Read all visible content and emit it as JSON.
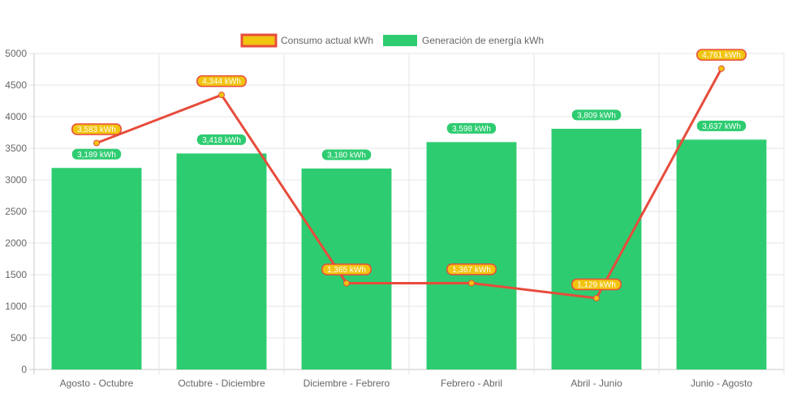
{
  "chart_data": {
    "type": "bar",
    "categories": [
      "Agosto - Octubre",
      "Octubre - Diciembre",
      "Diciembre - Febrero",
      "Febrero - Abril",
      "Abril - Junio",
      "Junio - Agosto"
    ],
    "series": [
      {
        "name": "Consumo actual kWh",
        "type": "line",
        "values": [
          3583,
          4344,
          1365,
          1367,
          1129,
          4761
        ],
        "labels": [
          "3,583 kWh",
          "4,344 kWh",
          "1,365 kWh",
          "1,367 kWh",
          "1,129 kWh",
          "4,761 kWh"
        ],
        "color": "#e74c3c",
        "point_color": "#f1c40f"
      },
      {
        "name": "Generación de energía kWh",
        "type": "bar",
        "values": [
          3189,
          3418,
          3180,
          3598,
          3809,
          3637
        ],
        "labels": [
          "3,189 kWh",
          "3,418 kWh",
          "3,180 kWh",
          "3,598 kWh",
          "3,809 kWh",
          "3,637 kWh"
        ],
        "color": "#2ecc71"
      }
    ],
    "yticks": [
      "0",
      "500",
      "1000",
      "1500",
      "2000",
      "2500",
      "3000",
      "3500",
      "4000",
      "4500",
      "5000"
    ],
    "ylim": [
      0,
      5000
    ],
    "grid": true,
    "legend": "top-center"
  }
}
